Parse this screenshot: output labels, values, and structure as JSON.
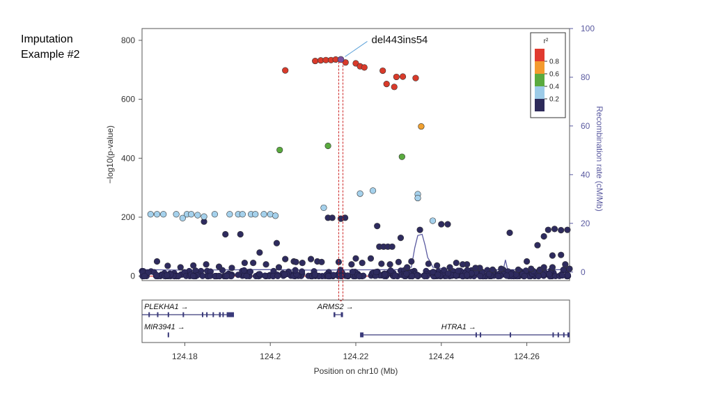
{
  "slide": {
    "title_line1": "Imputation",
    "title_line2": "Example #2"
  },
  "chart_data": {
    "type": "scatter",
    "title": "",
    "xlabel": "Position on chr10 (Mb)",
    "ylabel": "−log10(p-value)",
    "y2label": "Recombination rate (cM/Mb)",
    "xlim": [
      124.17,
      124.27
    ],
    "ylim": [
      -15,
      840
    ],
    "y2lim": [
      -3.5,
      100
    ],
    "x_ticks": [
      124.18,
      124.2,
      124.22,
      124.24,
      124.26
    ],
    "x_tick_labels": [
      "124.18",
      "124.2",
      "124.22",
      "124.24",
      "124.26"
    ],
    "y_ticks": [
      0,
      200,
      400,
      600,
      800
    ],
    "y_tick_labels": [
      "0",
      "200",
      "400",
      "600",
      "800"
    ],
    "y2_ticks": [
      0,
      20,
      40,
      60,
      80,
      100
    ],
    "y2_tick_labels": [
      "0",
      "20",
      "40",
      "60",
      "80",
      "100"
    ],
    "annotation": {
      "label": "del443ins54",
      "x": 124.2165,
      "y": 735
    },
    "highlight_x": 124.2165,
    "legend": {
      "title": "r²",
      "placement": "top-right",
      "ticks": [
        "0.8",
        "0.6",
        "0.4",
        "0.2"
      ],
      "colors": [
        "#e03a2f",
        "#f39a2e",
        "#5aaa3f",
        "#9ccbe8",
        "#2d2a5a"
      ]
    },
    "colors": {
      "red": "#d93a2a",
      "orange": "#f0a030",
      "green": "#5aaa3f",
      "lightblue": "#a5d1ec",
      "navy": "#2e2b5e",
      "recomb": "#5a5aa0",
      "highlight": "#cc2222"
    },
    "series": [
      {
        "r2": "0.8-1.0",
        "color": "red",
        "points": [
          [
            124.2035,
            698
          ],
          [
            124.2105,
            730
          ],
          [
            124.2118,
            732
          ],
          [
            124.213,
            733
          ],
          [
            124.2142,
            733
          ],
          [
            124.2153,
            735
          ],
          [
            124.2176,
            725
          ],
          [
            124.22,
            722
          ],
          [
            124.221,
            712
          ],
          [
            124.222,
            708
          ],
          [
            124.2263,
            697
          ],
          [
            124.2272,
            652
          ],
          [
            124.229,
            642
          ],
          [
            124.2295,
            676
          ],
          [
            124.231,
            677
          ],
          [
            124.234,
            672
          ]
        ]
      },
      {
        "r2": "0.6-0.8",
        "color": "orange",
        "points": [
          [
            124.2353,
            508
          ]
        ]
      },
      {
        "r2": "0.4-0.6",
        "color": "green",
        "points": [
          [
            124.2022,
            428
          ],
          [
            124.2135,
            442
          ],
          [
            124.2308,
            405
          ]
        ]
      },
      {
        "r2": "0.2-0.4",
        "color": "lightblue",
        "points": [
          [
            124.172,
            210
          ],
          [
            124.1735,
            210
          ],
          [
            124.175,
            210
          ],
          [
            124.178,
            210
          ],
          [
            124.1795,
            197
          ],
          [
            124.1805,
            210
          ],
          [
            124.1815,
            210
          ],
          [
            124.183,
            207
          ],
          [
            124.1845,
            202
          ],
          [
            124.187,
            210
          ],
          [
            124.1905,
            210
          ],
          [
            124.1925,
            210
          ],
          [
            124.1935,
            210
          ],
          [
            124.1955,
            210
          ],
          [
            124.1965,
            210
          ],
          [
            124.1985,
            210
          ],
          [
            124.2,
            210
          ],
          [
            124.2012,
            205
          ],
          [
            124.2125,
            232
          ],
          [
            124.221,
            280
          ],
          [
            124.224,
            290
          ],
          [
            124.2345,
            278
          ],
          [
            124.2345,
            265
          ],
          [
            124.238,
            188
          ]
        ]
      },
      {
        "r2": "0.0-0.2",
        "color": "navy",
        "points": [
          [
            124.1845,
            185
          ],
          [
            124.1895,
            142
          ],
          [
            124.193,
            142
          ],
          [
            124.1975,
            80
          ],
          [
            124.2015,
            112
          ],
          [
            124.2035,
            58
          ],
          [
            124.2055,
            50
          ],
          [
            124.2075,
            45
          ],
          [
            124.2095,
            58
          ],
          [
            124.211,
            50
          ],
          [
            124.2135,
            198
          ],
          [
            124.2145,
            198
          ],
          [
            124.2175,
            198
          ],
          [
            124.2165,
            195
          ],
          [
            124.22,
            60
          ],
          [
            124.2235,
            60
          ],
          [
            124.225,
            170
          ],
          [
            124.2255,
            100
          ],
          [
            124.2265,
            100
          ],
          [
            124.2275,
            100
          ],
          [
            124.2285,
            100
          ],
          [
            124.226,
            42
          ],
          [
            124.2305,
            130
          ],
          [
            124.23,
            48
          ],
          [
            124.233,
            50
          ],
          [
            124.235,
            157
          ],
          [
            124.24,
            176
          ],
          [
            124.2415,
            176
          ],
          [
            124.2435,
            45
          ],
          [
            124.246,
            40
          ],
          [
            124.249,
            28
          ],
          [
            124.256,
            147
          ],
          [
            124.26,
            50
          ],
          [
            124.2625,
            105
          ],
          [
            124.264,
            135
          ],
          [
            124.265,
            157
          ],
          [
            124.2665,
            160
          ],
          [
            124.268,
            156
          ],
          [
            124.2695,
            157
          ],
          [
            124.266,
            70
          ],
          [
            124.268,
            72
          ],
          [
            124.269,
            40
          ],
          [
            124.27,
            25
          ],
          [
            124.266,
            30
          ],
          [
            124.264,
            30
          ],
          [
            124.1735,
            50
          ],
          [
            124.176,
            35
          ],
          [
            124.179,
            30
          ],
          [
            124.182,
            36
          ],
          [
            124.185,
            40
          ],
          [
            124.188,
            32
          ],
          [
            124.191,
            28
          ],
          [
            124.194,
            45
          ],
          [
            124.196,
            45
          ],
          [
            124.199,
            40
          ],
          [
            124.202,
            30
          ],
          [
            124.206,
            48
          ],
          [
            124.212,
            48
          ],
          [
            124.216,
            48
          ],
          [
            124.219,
            40
          ],
          [
            124.2215,
            45
          ],
          [
            124.228,
            40
          ],
          [
            124.232,
            30
          ],
          [
            124.237,
            42
          ],
          [
            124.239,
            36
          ],
          [
            124.242,
            30
          ],
          [
            124.245,
            40
          ],
          [
            124.248,
            28
          ],
          [
            124.252,
            22
          ],
          [
            124.254,
            25
          ],
          [
            124.258,
            22
          ],
          [
            124.261,
            25
          ],
          [
            124.263,
            20
          ]
        ]
      }
    ],
    "recombination_rate": [
      [
        124.17,
        1.0
      ],
      [
        124.18,
        0.8
      ],
      [
        124.19,
        0.9
      ],
      [
        124.2,
        1.0
      ],
      [
        124.21,
        0.8
      ],
      [
        124.22,
        0.9
      ],
      [
        124.23,
        1.0
      ],
      [
        124.233,
        2.0
      ],
      [
        124.2338,
        10.0
      ],
      [
        124.2345,
        15.0
      ],
      [
        124.2355,
        15.5
      ],
      [
        124.2362,
        11.0
      ],
      [
        124.2368,
        6.0
      ],
      [
        124.2375,
        4.0
      ],
      [
        124.238,
        2.0
      ],
      [
        124.242,
        1.0
      ],
      [
        124.25,
        0.8
      ],
      [
        124.2545,
        1.0
      ],
      [
        124.255,
        5.0
      ],
      [
        124.2555,
        1.0
      ],
      [
        124.26,
        0.9
      ],
      [
        124.27,
        1.0
      ]
    ],
    "genes": [
      {
        "name": "PLEKHA1",
        "row": 1,
        "start": 124.17,
        "end": 124.1915,
        "label_x": 124.1705,
        "strand": "+",
        "exons": [
          [
            124.1715,
            124.1718
          ],
          [
            124.1735,
            124.1738
          ],
          [
            124.176,
            124.1763
          ],
          [
            124.1795,
            124.1798
          ],
          [
            124.184,
            124.1843
          ],
          [
            124.185,
            124.1853
          ],
          [
            124.1865,
            124.1868
          ],
          [
            124.188,
            124.1884
          ],
          [
            124.1888,
            124.189
          ],
          [
            124.1898,
            124.1902
          ],
          [
            124.1902,
            124.1915
          ]
        ]
      },
      {
        "name": "ARMS2",
        "row": 1,
        "start": 124.2148,
        "end": 124.217,
        "label_x": 124.211,
        "strand": "+",
        "exons": [
          [
            124.2148,
            124.2152
          ],
          [
            124.2165,
            124.217
          ]
        ]
      },
      {
        "name": "MIR3941",
        "row": 2,
        "start": 124.176,
        "end": 124.1763,
        "label_x": 124.1705,
        "strand": "+",
        "exons": [
          [
            124.176,
            124.1763
          ]
        ]
      },
      {
        "name": "HTRA1",
        "row": 2,
        "start": 124.221,
        "end": 124.27,
        "label_x": 124.24,
        "strand": "+",
        "exons": [
          [
            124.221,
            124.2218
          ],
          [
            124.248,
            124.2483
          ],
          [
            124.249,
            124.2493
          ],
          [
            124.256,
            124.2563
          ],
          [
            124.266,
            124.2663
          ],
          [
            124.2672,
            124.2675
          ],
          [
            124.2685,
            124.2688
          ],
          [
            124.2695,
            124.27
          ]
        ]
      }
    ]
  }
}
